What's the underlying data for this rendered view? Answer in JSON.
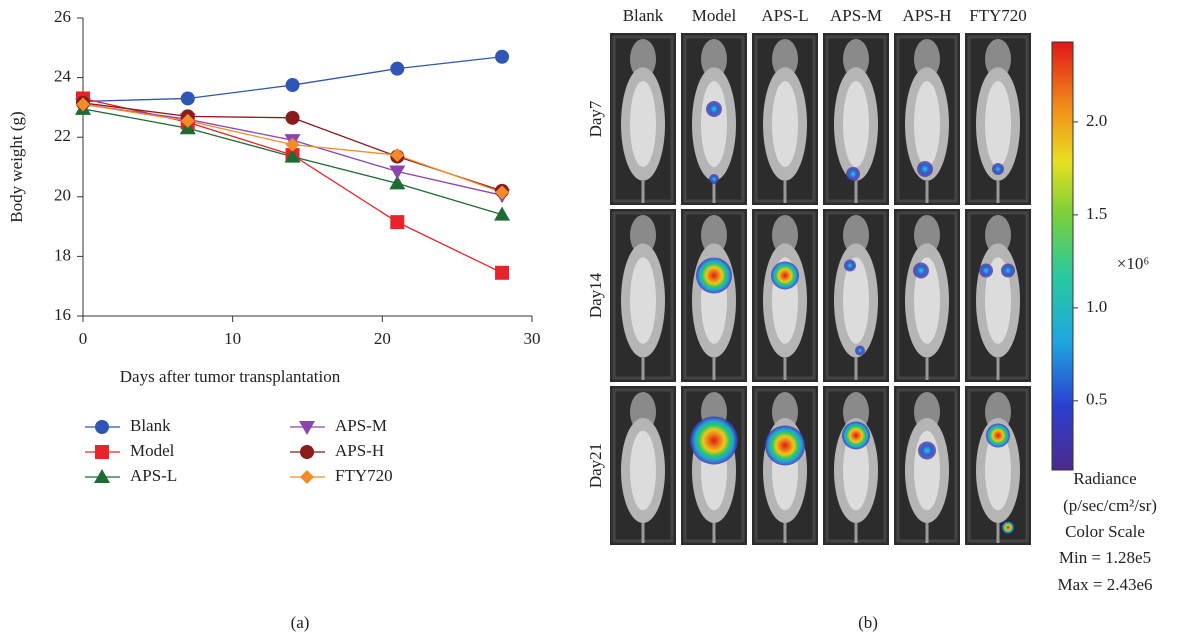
{
  "chart_data": [
    {
      "type": "line",
      "xlabel": "Days after tumor transplantation",
      "ylabel": "Body weight (g)",
      "x": [
        0,
        7,
        14,
        21,
        28
      ],
      "xlim": [
        0,
        30
      ],
      "xticks": [
        0,
        10,
        20,
        30
      ],
      "ylim": [
        16,
        26
      ],
      "yticks": [
        16,
        18,
        20,
        22,
        24,
        26
      ],
      "series": [
        {
          "name": "Blank",
          "color": "#2f55b5",
          "marker": "circle",
          "values": [
            23.2,
            23.3,
            23.75,
            24.3,
            24.7
          ]
        },
        {
          "name": "Model",
          "color": "#e8242a",
          "marker": "square",
          "values": [
            23.3,
            22.5,
            21.4,
            19.15,
            17.45
          ]
        },
        {
          "name": "APS-L",
          "color": "#1e6b34",
          "marker": "triangle",
          "values": [
            22.95,
            22.3,
            21.35,
            20.45,
            19.4
          ]
        },
        {
          "name": "APS-M",
          "color": "#8e44b0",
          "marker": "triangle-down",
          "values": [
            23.1,
            22.6,
            21.9,
            20.85,
            20.05
          ]
        },
        {
          "name": "APS-H",
          "color": "#8b1a1a",
          "marker": "circle",
          "values": [
            23.15,
            22.7,
            22.65,
            21.35,
            20.2
          ]
        },
        {
          "name": "FTY720",
          "color": "#f28c28",
          "marker": "diamond",
          "values": [
            23.1,
            22.55,
            21.75,
            21.4,
            20.15
          ]
        }
      ],
      "panel_label": "(a)"
    },
    {
      "type": "image-grid",
      "columns": [
        "Blank",
        "Model",
        "APS-L",
        "APS-M",
        "APS-H",
        "FTY720"
      ],
      "rows": [
        "Day7",
        "Day14",
        "Day21"
      ],
      "colorbar": {
        "lim": [
          0.128,
          2.43
        ],
        "ticks": [
          0.5,
          {
            "value": 1,
            "label": "1.0"
          },
          1.5,
          {
            "value": 2,
            "label": "2.0"
          }
        ],
        "multiplier": "×10⁶",
        "title": "Radiance",
        "unit": "(p/sec/cm²/sr)",
        "scale_title": "Color Scale",
        "min_label": "Min = 1.28e5",
        "max_label": "Max = 2.43e6"
      },
      "panel_label": "(b)"
    }
  ]
}
